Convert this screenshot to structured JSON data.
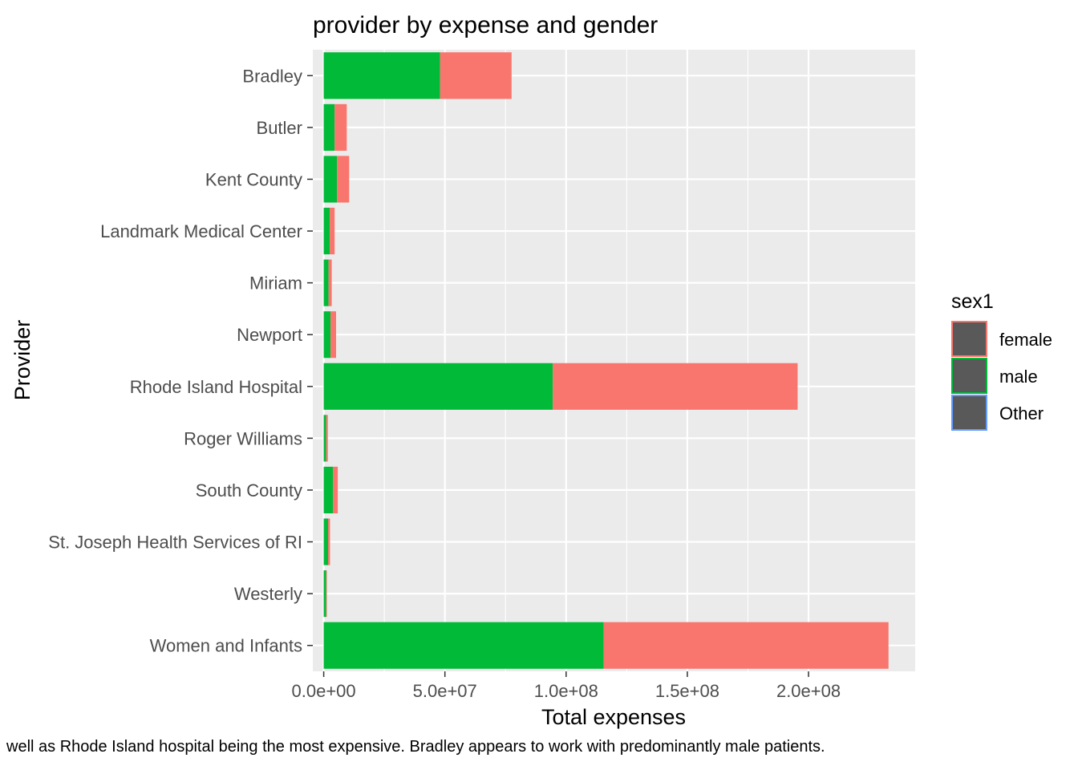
{
  "chart_data": {
    "type": "bar",
    "orientation": "horizontal",
    "stacked": true,
    "title": "provider by expense and gender",
    "xlabel": "Total expenses",
    "ylabel": "Provider",
    "xlim": [
      -4500000,
      244000000
    ],
    "x_ticks": [
      0,
      50000000,
      100000000,
      150000000,
      200000000
    ],
    "x_tick_labels": [
      "0.0e+00",
      "5.0e+07",
      "1.0e+08",
      "1.5e+08",
      "2.0e+08"
    ],
    "grid": true,
    "legend": {
      "title": "sex1",
      "position": "right",
      "entries": [
        "female",
        "male",
        "Other"
      ],
      "colors": [
        "#F8766D",
        "#00BA38",
        "#619CFF"
      ]
    },
    "categories": [
      "Women and Infants",
      "Westerly",
      "St. Joseph Health Services of RI",
      "South County",
      "Roger Williams",
      "Rhode Island Hospital",
      "Newport",
      "Miriam",
      "Landmark Medical Center",
      "Kent County",
      "Butler",
      "Bradley"
    ],
    "series": [
      {
        "name": "male",
        "color": "#00BA38",
        "values": [
          115500000,
          1000000,
          1800000,
          3800000,
          1000000,
          94500000,
          2800000,
          2000000,
          2500000,
          5500000,
          4500000,
          48000000
        ]
      },
      {
        "name": "female",
        "color": "#F8766D",
        "values": [
          117500000,
          300000,
          800000,
          2000000,
          700000,
          101000000,
          2300000,
          1300000,
          2000000,
          5000000,
          5000000,
          29500000
        ]
      },
      {
        "name": "Other",
        "color": "#619CFF",
        "values": [
          0,
          0,
          0,
          0,
          0,
          0,
          0,
          0,
          0,
          0,
          0,
          0
        ]
      }
    ]
  },
  "caption": "well as Rhode Island hospital being the most expensive. Bradley appears to work with predominantly male patients."
}
